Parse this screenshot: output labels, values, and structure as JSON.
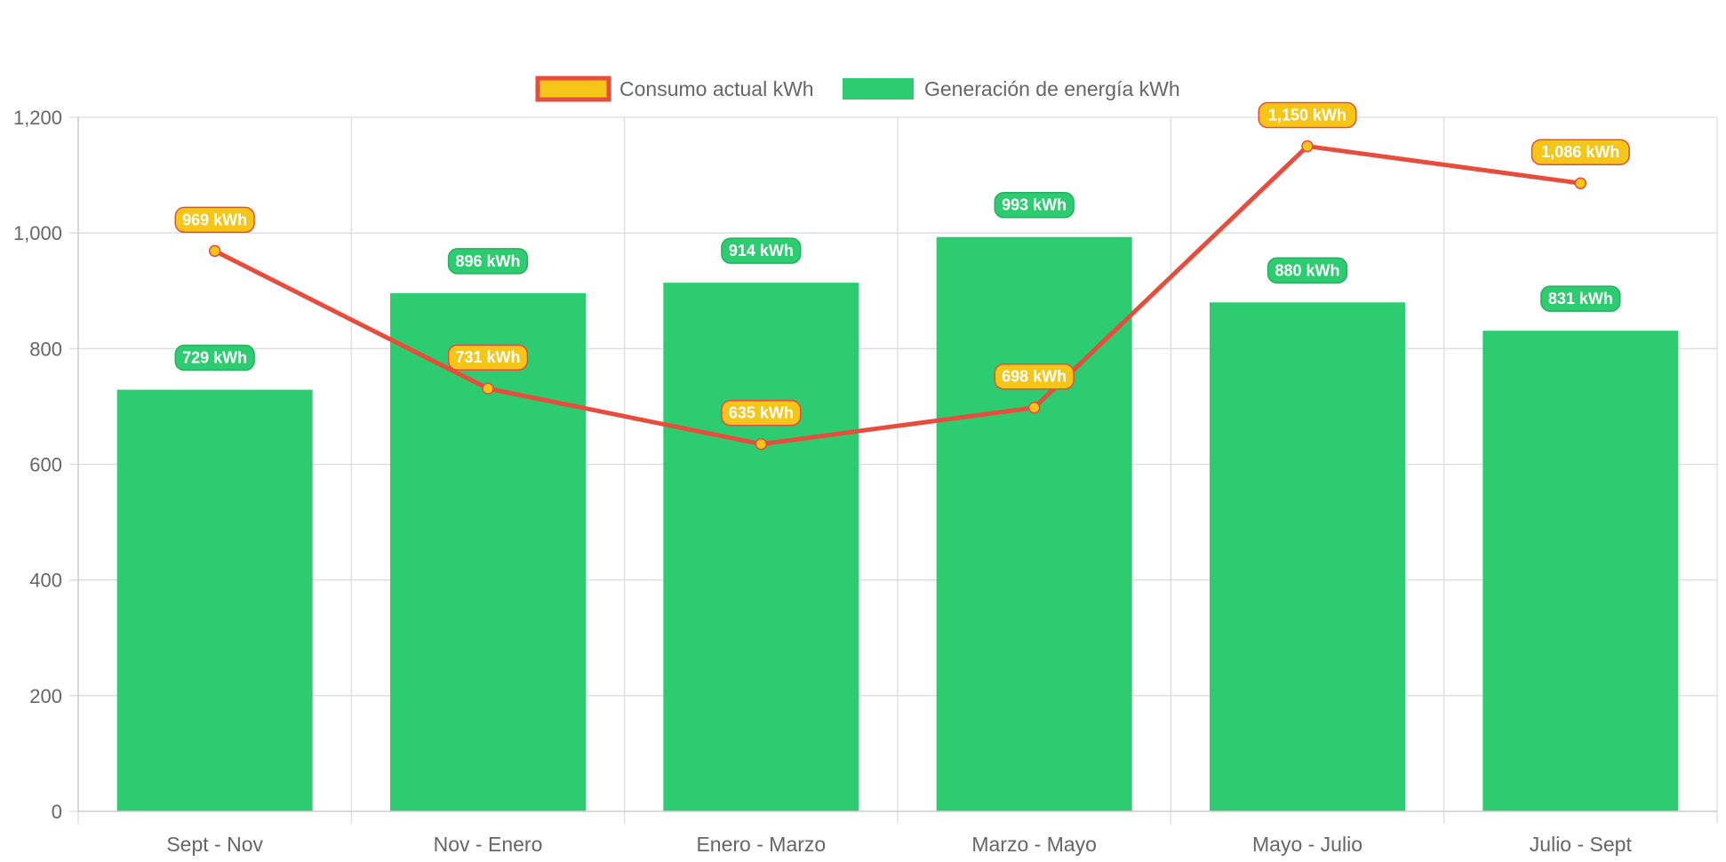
{
  "chart_data": {
    "type": "bar",
    "categories": [
      "Sept - Nov",
      "Nov - Enero",
      "Enero - Marzo",
      "Marzo - Mayo",
      "Mayo - Julio",
      "Julio - Sept"
    ],
    "series": [
      {
        "name": "Consumo actual kWh",
        "type": "line",
        "values": [
          969,
          731,
          635,
          698,
          1150,
          1086
        ],
        "data_labels": [
          "969 kWh",
          "731 kWh",
          "635 kWh",
          "698 kWh",
          "1,150 kWh",
          "1,086 kWh"
        ],
        "color": "#e74c3c",
        "fill_color": "#f5c518"
      },
      {
        "name": "Generación de energía kWh",
        "type": "bar",
        "values": [
          729,
          896,
          914,
          993,
          880,
          831
        ],
        "data_labels": [
          "729 kWh",
          "896 kWh",
          "914 kWh",
          "993 kWh",
          "880 kWh",
          "831 kWh"
        ],
        "color": "#2ecc71",
        "label_border": "#27ae60"
      }
    ],
    "y_ticks": [
      "0",
      "200",
      "400",
      "600",
      "800",
      "1,000",
      "1,200"
    ],
    "ylim": [
      0,
      1200
    ],
    "grid": true,
    "legend_position": "top-center",
    "title": "",
    "xlabel": "",
    "ylabel": ""
  }
}
